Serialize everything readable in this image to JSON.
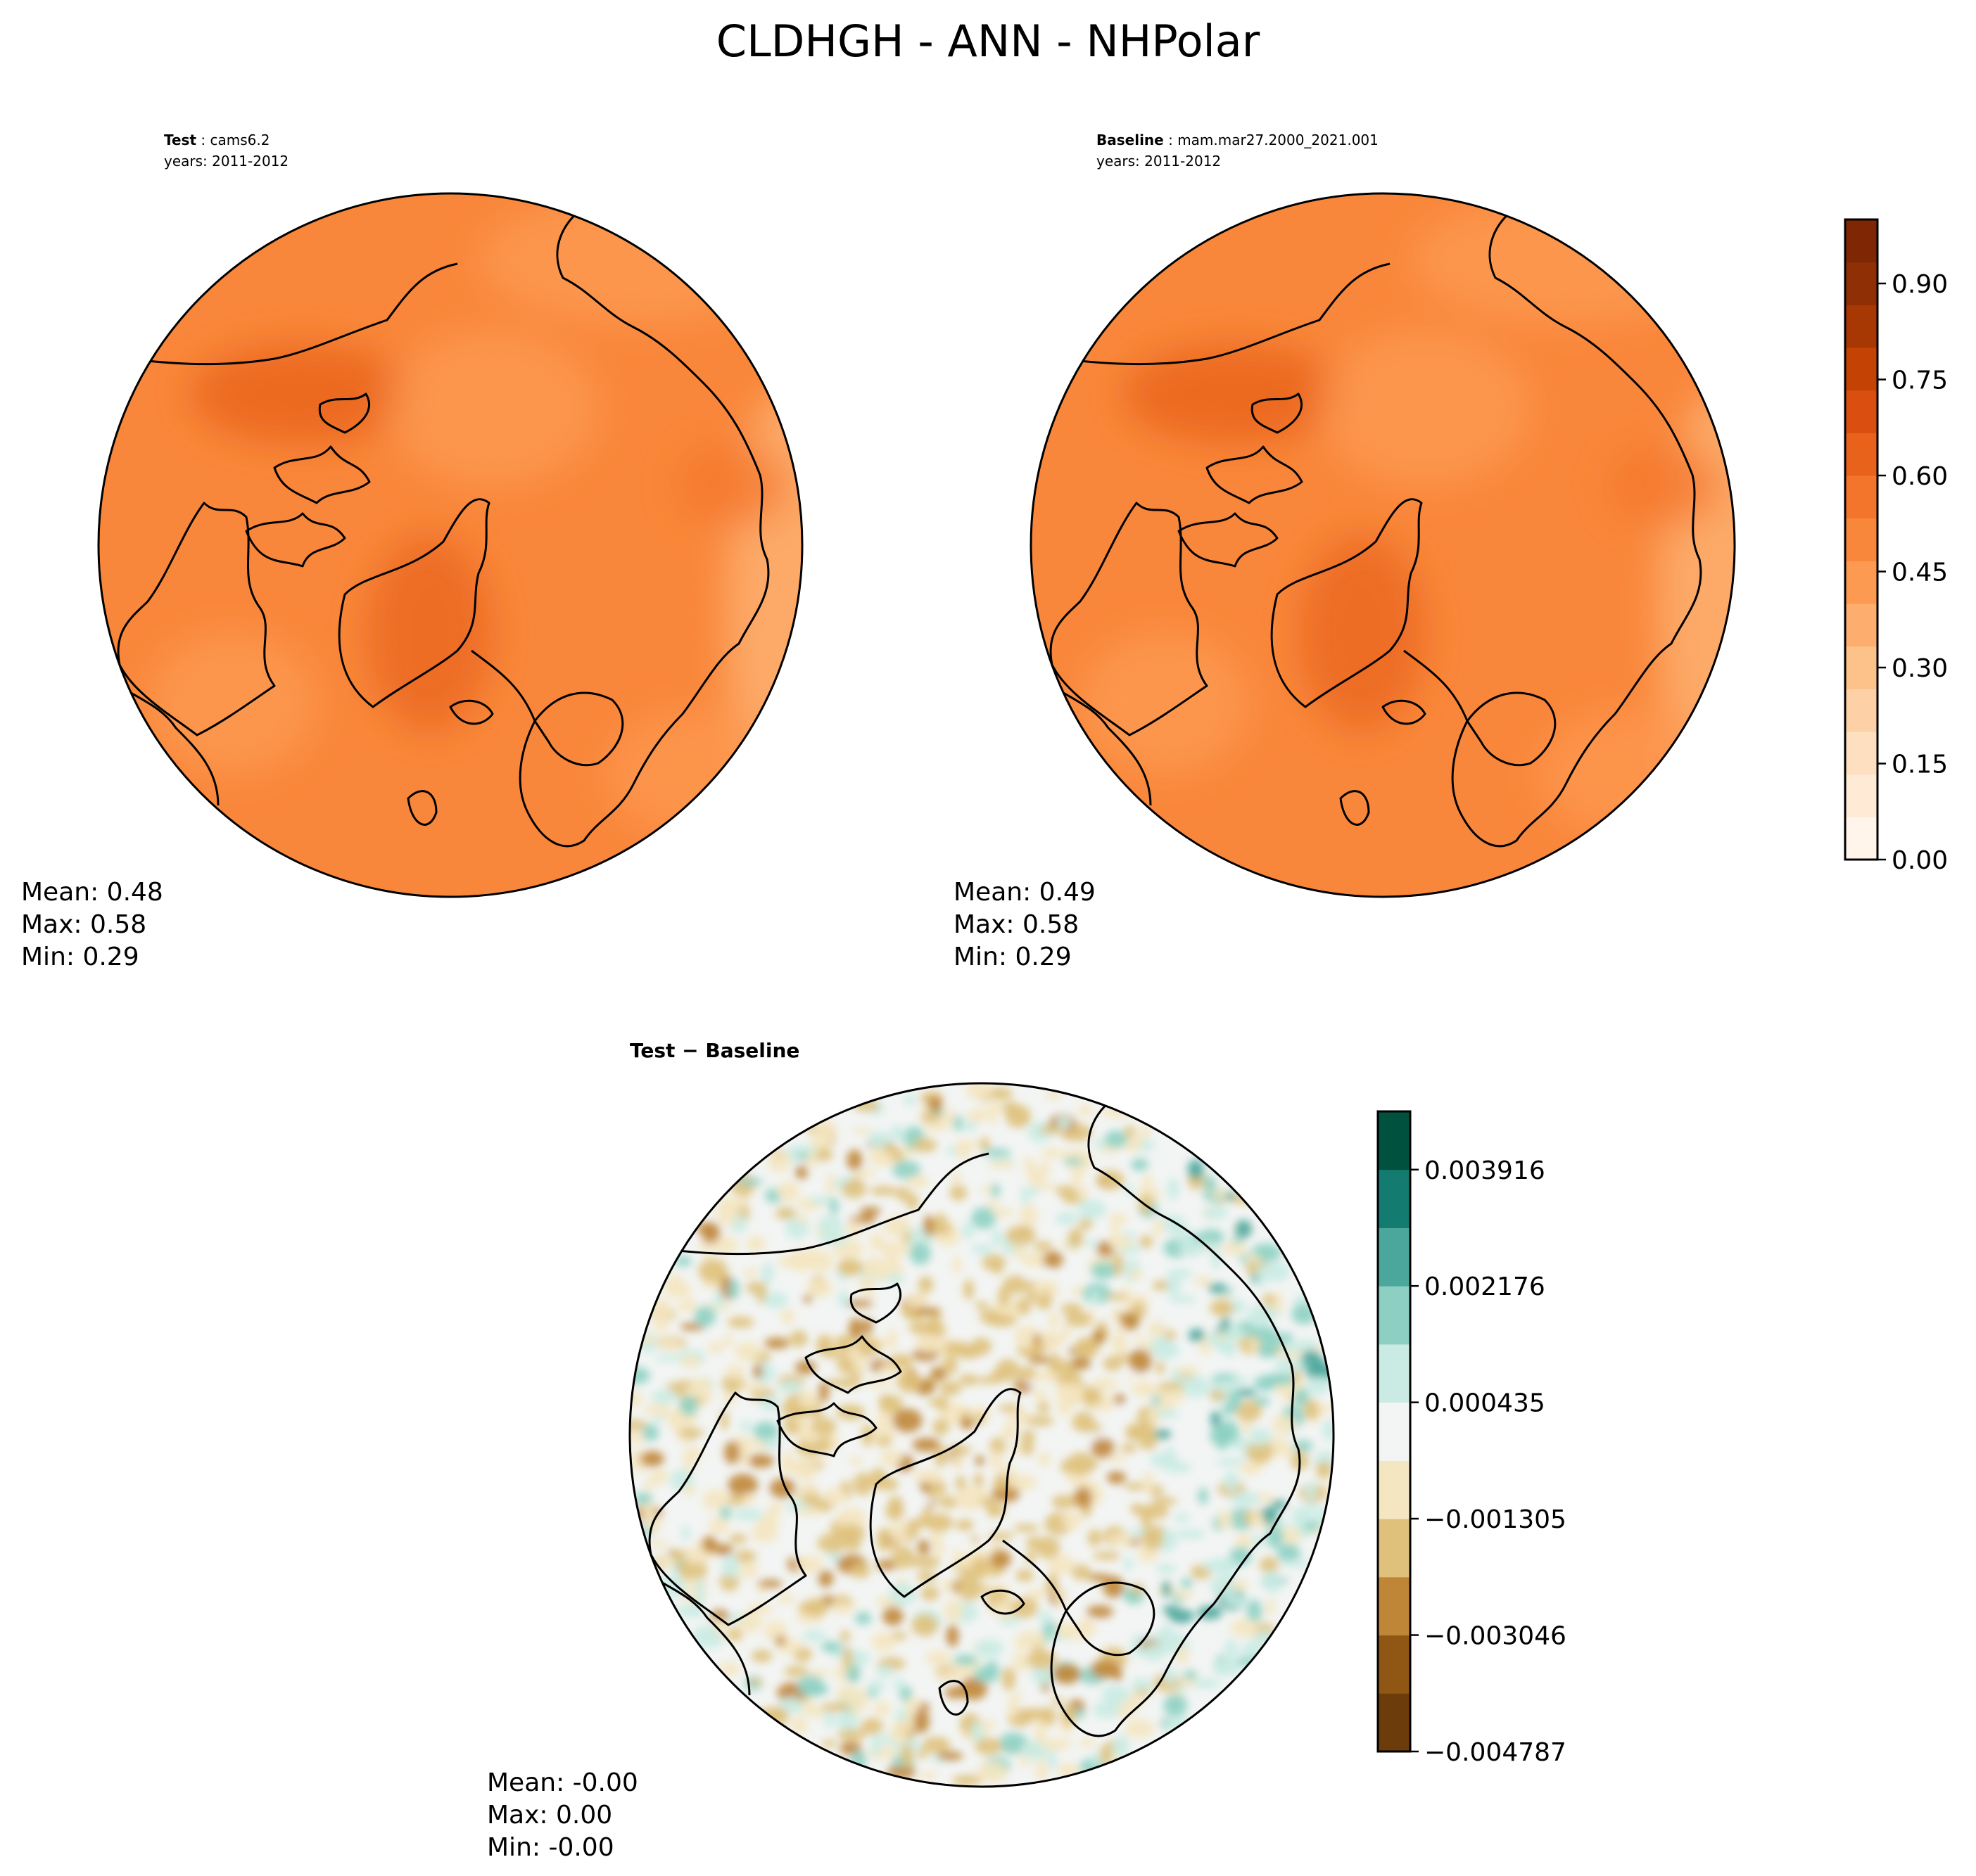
{
  "title": "CLDHGH - ANN - NHPolar",
  "panels": [
    {
      "id": "test",
      "header_key": "Test",
      "header_value": "cams6.2",
      "years": "years: 2011-2012",
      "stats": [
        "Mean:  0.48",
        "Max:  0.58",
        "Min:  0.29"
      ]
    },
    {
      "id": "baseline",
      "header_key": "Baseline",
      "header_value": "mam.mar27.2000_2021.001",
      "years": "years: 2011-2012",
      "stats": [
        "Mean:  0.49",
        "Max:  0.58",
        "Min:  0.29"
      ]
    },
    {
      "id": "diff",
      "header_key": "Test − Baseline",
      "stats": [
        "Mean: -0.00",
        "Max:  0.00",
        "Min: -0.00"
      ]
    }
  ],
  "chart_data": [
    {
      "type": "heatmap",
      "panel": "test",
      "projection": "north-polar-stereographic",
      "mean": 0.48,
      "max": 0.58,
      "min": 0.29,
      "colormap": "Oranges",
      "range": [
        0.0,
        1.0
      ],
      "colorbar_ticks": [
        "0.00",
        "0.15",
        "0.30",
        "0.45",
        "0.60",
        "0.75",
        "0.90"
      ],
      "colorbar_tick_values": [
        0.0,
        0.15,
        0.3,
        0.45,
        0.6,
        0.75,
        0.9
      ]
    },
    {
      "type": "heatmap",
      "panel": "baseline",
      "projection": "north-polar-stereographic",
      "mean": 0.49,
      "max": 0.58,
      "min": 0.29,
      "colormap": "Oranges",
      "range": [
        0.0,
        1.0
      ],
      "colorbar_ticks": [
        "0.00",
        "0.15",
        "0.30",
        "0.45",
        "0.60",
        "0.75",
        "0.90"
      ],
      "colorbar_tick_values": [
        0.0,
        0.15,
        0.3,
        0.45,
        0.6,
        0.75,
        0.9
      ]
    },
    {
      "type": "heatmap",
      "panel": "diff",
      "projection": "north-polar-stereographic",
      "mean": -0.0,
      "max": 0.0,
      "min": -0.0,
      "colormap": "BrBG",
      "range": [
        -0.004787,
        0.004787
      ],
      "colorbar_ticks": [
        "−0.004787",
        "−0.003046",
        "−0.001305",
        "0.000435",
        "0.002176",
        "0.003916"
      ],
      "colorbar_tick_values": [
        -0.004787,
        -0.003046,
        -0.001305,
        0.000435,
        0.002176,
        0.003916
      ]
    }
  ],
  "colors": {
    "oranges_levels": [
      "#fff5eb",
      "#feead5",
      "#fee0c0",
      "#fdd1a5",
      "#fdc18a",
      "#fdad6d",
      "#fd9a52",
      "#f9873b",
      "#f3752b",
      "#e8621c",
      "#da4f0f",
      "#c44304",
      "#a73703",
      "#8e2f05",
      "#7f2704"
    ],
    "brbg_levels": [
      "#6c3c0a",
      "#8f5713",
      "#c08637",
      "#dfc17c",
      "#f4e6c1",
      "#f3f5f4",
      "#c9ebe3",
      "#8dd0c3",
      "#4ba69b",
      "#137b6f",
      "#00523f"
    ]
  }
}
